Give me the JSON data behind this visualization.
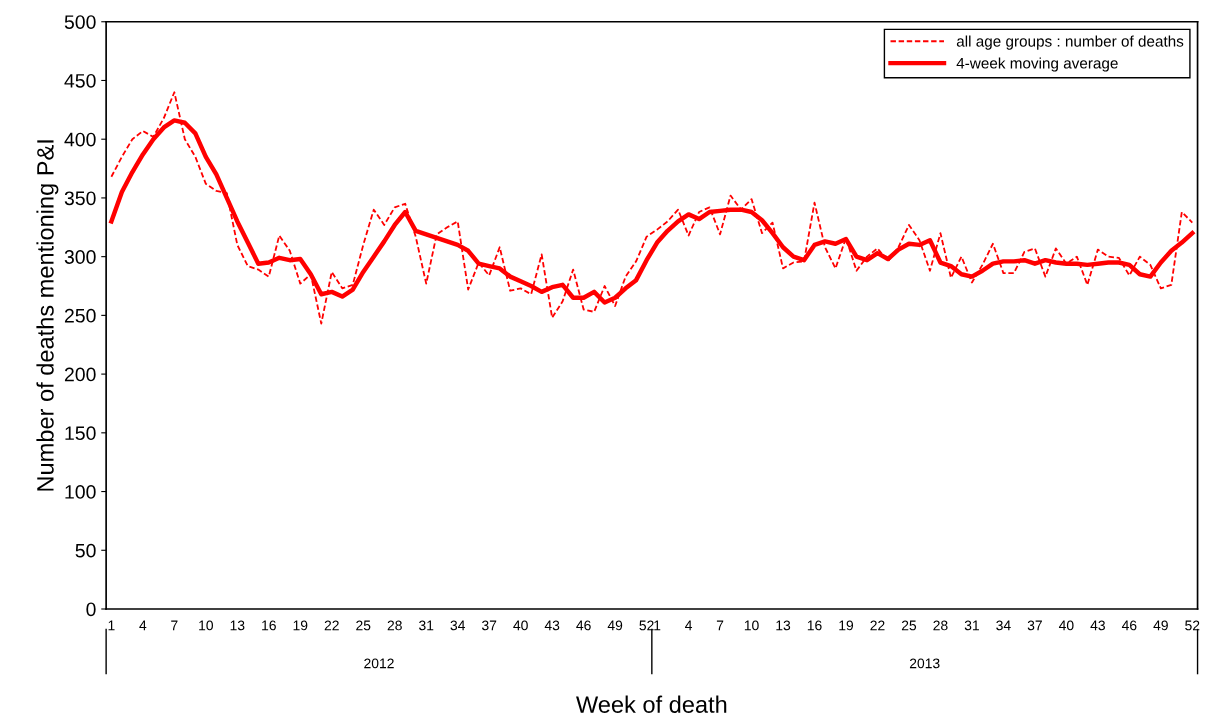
{
  "chart_data": {
    "type": "line",
    "xlabel": "Week of death",
    "ylabel": "Number of deaths mentioning P&I",
    "categories": [
      "1",
      null,
      null,
      "4",
      null,
      null,
      "7",
      null,
      null,
      "10",
      null,
      null,
      "13",
      null,
      null,
      "16",
      null,
      null,
      "19",
      null,
      null,
      "22",
      null,
      null,
      "25",
      null,
      null,
      "28",
      null,
      null,
      "31",
      null,
      null,
      "34",
      null,
      null,
      "37",
      null,
      null,
      "40",
      null,
      null,
      "43",
      null,
      null,
      "46",
      null,
      null,
      "49",
      null,
      null,
      "52",
      "1",
      null,
      null,
      "4",
      null,
      null,
      "7",
      null,
      null,
      "10",
      null,
      null,
      "13",
      null,
      null,
      "16",
      null,
      null,
      "19",
      null,
      null,
      "22",
      null,
      null,
      "25",
      null,
      null,
      "28",
      null,
      null,
      "31",
      null,
      null,
      "34",
      null,
      null,
      "37",
      null,
      null,
      "40",
      null,
      null,
      "43",
      null,
      null,
      "46",
      null,
      null,
      "49",
      null,
      null,
      "52"
    ],
    "series": [
      {
        "name": "all age groups : number of deaths",
        "color": "#ff0000",
        "line_style": "dashed",
        "values": [
          368,
          385,
          400,
          407,
          402,
          418,
          440,
          400,
          385,
          362,
          356,
          354,
          310,
          292,
          289,
          283,
          318,
          305,
          277,
          285,
          243,
          287,
          273,
          276,
          310,
          340,
          327,
          342,
          345,
          317,
          277,
          319,
          325,
          330,
          272,
          295,
          284,
          308,
          271,
          273,
          268,
          302,
          248,
          262,
          289,
          255,
          253,
          275,
          258,
          283,
          296,
          317,
          323,
          330,
          340,
          318,
          338,
          342,
          319,
          352,
          340,
          349,
          320,
          329,
          290,
          295,
          296,
          346,
          308,
          290,
          316,
          288,
          300,
          307,
          296,
          308,
          327,
          314,
          288,
          320,
          282,
          300,
          278,
          293,
          311,
          286,
          286,
          304,
          307,
          283,
          307,
          294,
          300,
          276,
          306,
          300,
          299,
          284,
          300,
          293,
          273,
          276,
          338,
          329
        ]
      },
      {
        "name": "4-week moving average",
        "color": "#ff0000",
        "line_style": "solid",
        "values": [
          330,
          355,
          372,
          387,
          400,
          410,
          416,
          414,
          405,
          385,
          370,
          350,
          330,
          312,
          294,
          295,
          299,
          297,
          298,
          285,
          268,
          270,
          266,
          272,
          287,
          300,
          313,
          327,
          338,
          322,
          319,
          316,
          313,
          310,
          305,
          294,
          292,
          290,
          283,
          279,
          275,
          270,
          274,
          276,
          265,
          265,
          270,
          261,
          265,
          273,
          280,
          297,
          312,
          322,
          330,
          336,
          332,
          338,
          339,
          340,
          340,
          338,
          331,
          320,
          308,
          300,
          297,
          310,
          313,
          311,
          315,
          300,
          297,
          303,
          298,
          306,
          311,
          310,
          314,
          295,
          292,
          285,
          283,
          288,
          294,
          296,
          296,
          297,
          294,
          297,
          295,
          294,
          294,
          293,
          294,
          295,
          295,
          293,
          285,
          283,
          295,
          305,
          312,
          320
        ]
      }
    ],
    "ylim": [
      0,
      500
    ],
    "yticks": [
      0,
      50,
      100,
      150,
      200,
      250,
      300,
      350,
      400,
      450,
      500
    ],
    "annotations": [
      "2012",
      "2013"
    ],
    "legend": "top right",
    "grid": false,
    "marker": "none"
  }
}
